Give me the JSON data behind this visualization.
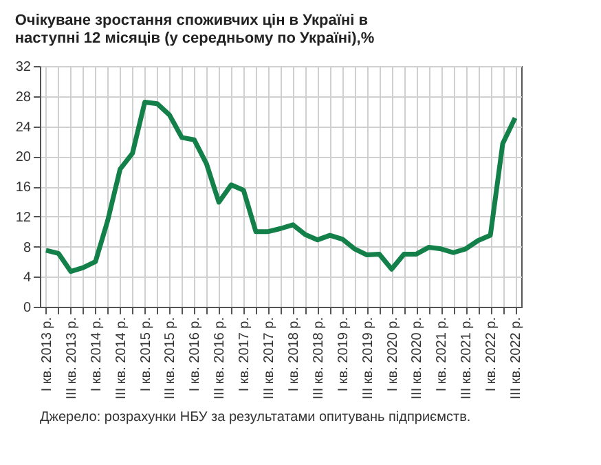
{
  "chart_data": {
    "type": "line",
    "title": [
      "Очікуване зростання споживчих цін в Україні в",
      "наступні 12 місяців (у середньому по Україні),%"
    ],
    "categories": [
      "I кв. 2013 р.",
      null,
      "III кв. 2013 р.",
      null,
      "I кв. 2014 р.",
      null,
      "III кв. 2014 р.",
      null,
      "I кв. 2015 р.",
      null,
      "III кв. 2015 р.",
      null,
      "I кв. 2016 р.",
      null,
      "III кв. 2016 р.",
      null,
      "I кв. 2017 р.",
      null,
      "III кв. 2017 р.",
      null,
      "I кв. 2018 р.",
      null,
      "III кв. 2018 р.",
      null,
      "I кв. 2019 р.",
      null,
      "III кв. 2019 р.",
      null,
      "I кв. 2020 р.",
      null,
      "III кв. 2020 р.",
      null,
      "I кв. 2021 р.",
      null,
      "III кв. 2021 р.",
      null,
      "I кв. 2022 р.",
      null,
      "III кв. 2022 р."
    ],
    "series": [
      {
        "color": "#13804a",
        "values": [
          7.5,
          7.1,
          4.7,
          5.2,
          6.0,
          11.5,
          18.3,
          20.4,
          27.2,
          27.0,
          25.5,
          22.5,
          22.2,
          19.0,
          13.9,
          16.2,
          15.5,
          10.0,
          10.0,
          10.4,
          10.9,
          9.6,
          8.9,
          9.5,
          9.0,
          7.7,
          6.9,
          7.0,
          5.0,
          7.0,
          7.0,
          7.9,
          7.7,
          7.2,
          7.7,
          8.8,
          9.5,
          21.7,
          25.1
        ]
      }
    ],
    "ylim": [
      0,
      32
    ],
    "yticks": [
      0,
      4,
      8,
      12,
      16,
      20,
      24,
      28,
      32
    ],
    "grid": true,
    "marker": "none",
    "line_style": "solid",
    "annotations": [
      "Джерело: розрахунки НБУ за результатами опитувань підприємств."
    ]
  }
}
